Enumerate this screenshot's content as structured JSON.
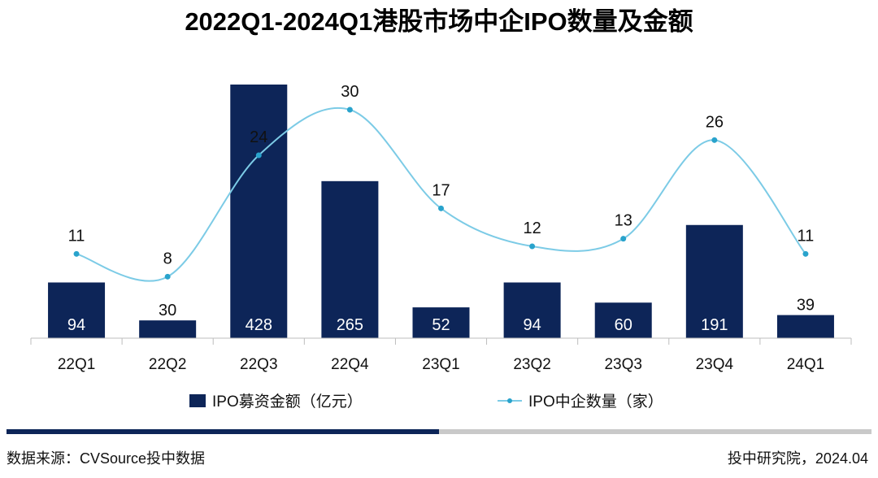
{
  "chart_data": {
    "type": "bar+line",
    "title": "2022Q1-2024Q1港股市场中企IPO数量及金额",
    "categories": [
      "22Q1",
      "22Q2",
      "22Q3",
      "22Q4",
      "23Q1",
      "23Q2",
      "23Q3",
      "23Q4",
      "24Q1"
    ],
    "series": [
      {
        "name": "IPO募资金额（亿元）",
        "type": "bar",
        "axis": "left",
        "values": [
          94,
          30,
          428,
          265,
          52,
          94,
          60,
          191,
          39
        ],
        "labels": [
          "94",
          "30",
          "428",
          "265",
          "52",
          "94",
          "60",
          "191",
          "39"
        ],
        "color": "#0d2558"
      },
      {
        "name": "IPO中企数量（家）",
        "type": "line",
        "axis": "right",
        "values": [
          11,
          8,
          24,
          30,
          17,
          12,
          13,
          26,
          11
        ],
        "labels": [
          "11",
          "8",
          "24",
          "30",
          "17",
          "12",
          "13",
          "26",
          "11"
        ],
        "color": "#7ccbe6"
      }
    ],
    "ylim_left": [
      0,
      470
    ],
    "ylim_right": [
      0,
      40
    ],
    "grid": false,
    "legend_position": "bottom"
  },
  "footer": {
    "source": "数据来源：CVSource投中数据",
    "credit": "投中研究院，2024.04"
  },
  "colors": {
    "bar": "#0d2558",
    "line": "#7ccbe6",
    "footer_bar_dark": "#0d2558",
    "footer_bar_light": "#c9c9c9"
  }
}
